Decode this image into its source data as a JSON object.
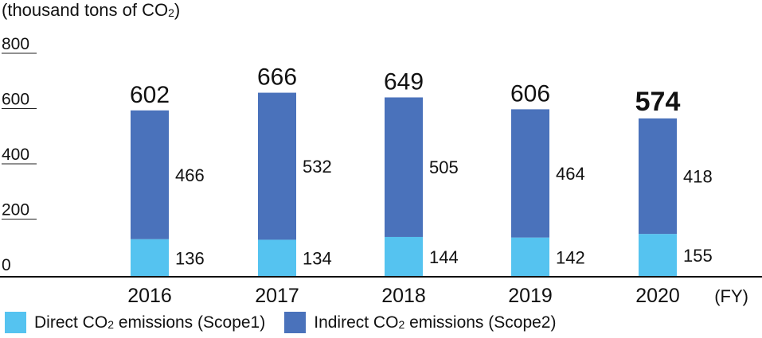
{
  "chart_data": {
    "type": "bar",
    "stacked": true,
    "unit_label_prefix": "(thousand tons of CO",
    "unit_label_sub": "2",
    "unit_label_suffix": ")",
    "x_unit": "(FY)",
    "categories": [
      "2016",
      "2017",
      "2018",
      "2019",
      "2020"
    ],
    "series": [
      {
        "name_prefix": "Direct CO",
        "name_sub": "2",
        "name_suffix": " emissions (Scope1)",
        "color": "#55c3f0",
        "values": [
          136,
          134,
          144,
          142,
          155
        ]
      },
      {
        "name_prefix": "Indirect CO",
        "name_sub": "2",
        "name_suffix": " emissions (Scope2)",
        "color": "#4a72bb",
        "values": [
          466,
          532,
          505,
          464,
          418
        ]
      }
    ],
    "totals": [
      602,
      666,
      649,
      606,
      574
    ],
    "highlight_total_index": 4,
    "yticks": [
      0,
      200,
      400,
      600,
      800
    ],
    "ylim": [
      0,
      800
    ],
    "grid": false
  }
}
